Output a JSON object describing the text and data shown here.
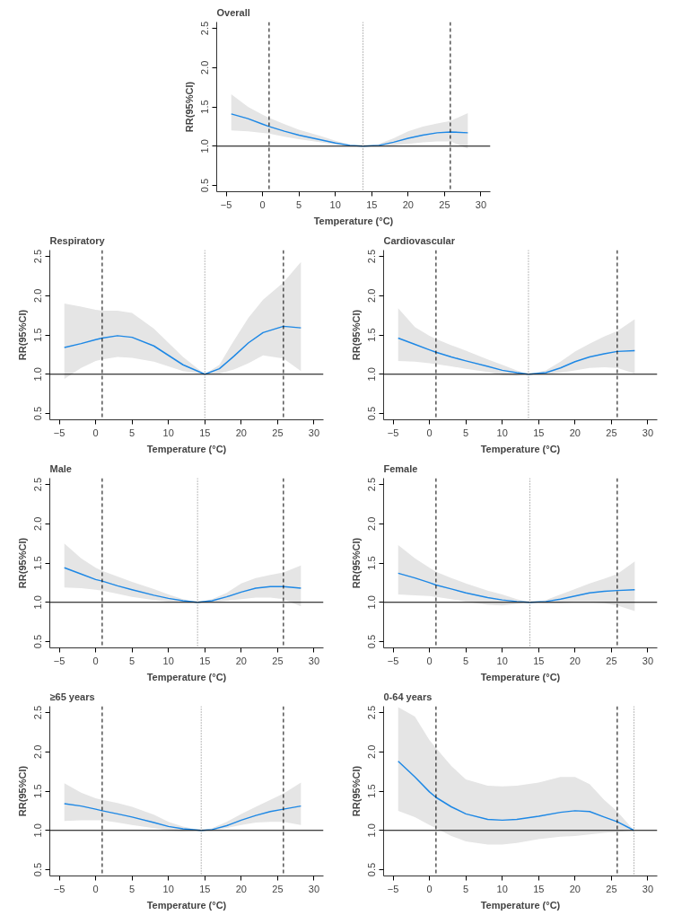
{
  "chart_data": [
    {
      "type": "line",
      "title": "Overall",
      "xlabel": "Temperature (°C)",
      "ylabel": "RR(95%CI)",
      "xlim": [
        -6.3,
        31.3
      ],
      "ylim": [
        0.42,
        2.58
      ],
      "xticks": [
        -5,
        0,
        5,
        10,
        15,
        20,
        25,
        30
      ],
      "yticks": [
        {
          "value": 0.5,
          "label": "0.5"
        },
        {
          "value": 1,
          "label": "1.0"
        },
        {
          "value": 1.5,
          "label": "1.5"
        },
        {
          "value": 2,
          "label": "2.0"
        },
        {
          "value": 2.5,
          "label": "2.5"
        }
      ],
      "x": [
        -4.3,
        -2,
        0,
        0.9,
        3,
        5,
        8,
        10,
        12,
        13.8,
        16,
        18,
        20,
        22,
        24,
        25.8,
        28.2
      ],
      "series": [
        {
          "color": "#1e88e5",
          "line_style": "solid",
          "values": [
            1.41,
            1.35,
            1.28,
            1.25,
            1.19,
            1.14,
            1.08,
            1.04,
            1.01,
            1.0,
            1.01,
            1.05,
            1.1,
            1.14,
            1.17,
            1.18,
            1.17
          ],
          "lower": [
            1.2,
            1.19,
            1.17,
            1.16,
            1.12,
            1.09,
            1.05,
            1.02,
            1.0,
            1.0,
            1.0,
            1.01,
            1.03,
            1.05,
            1.06,
            1.06,
            0.97
          ],
          "upper": [
            1.66,
            1.5,
            1.4,
            1.36,
            1.28,
            1.21,
            1.13,
            1.07,
            1.02,
            1.0,
            1.03,
            1.1,
            1.19,
            1.25,
            1.29,
            1.32,
            1.42
          ]
        }
      ],
      "ref_lines": [
        {
          "axis": "y",
          "value": 1,
          "color": "#000000",
          "line_style": "solid"
        },
        {
          "axis": "x",
          "value": 0.9,
          "color": "#000000",
          "line_style": "dashed"
        },
        {
          "axis": "x",
          "value": 13.8,
          "color": "#777777",
          "line_style": "dotted"
        },
        {
          "axis": "x",
          "value": 25.8,
          "color": "#000000",
          "line_style": "dashed"
        }
      ]
    },
    {
      "type": "line",
      "title": "Respiratory",
      "xlabel": "Temperature (°C)",
      "ylabel": "RR(95%CI)",
      "xlim": [
        -6.3,
        31.3
      ],
      "ylim": [
        0.42,
        2.58
      ],
      "xticks": [
        -5,
        0,
        5,
        10,
        15,
        20,
        25,
        30
      ],
      "yticks": [
        {
          "value": 0.5,
          "label": "0.5"
        },
        {
          "value": 1,
          "label": "1.0"
        },
        {
          "value": 1.5,
          "label": "1.5"
        },
        {
          "value": 2,
          "label": "2.0"
        },
        {
          "value": 2.5,
          "label": "2.5"
        }
      ],
      "x": [
        -4.3,
        -2,
        0,
        0.9,
        3,
        5,
        8,
        10,
        12,
        15,
        17,
        19,
        21,
        23,
        25.8,
        28.2
      ],
      "series": [
        {
          "color": "#1e88e5",
          "line_style": "solid",
          "values": [
            1.34,
            1.39,
            1.44,
            1.46,
            1.49,
            1.47,
            1.36,
            1.24,
            1.12,
            1.0,
            1.07,
            1.23,
            1.4,
            1.53,
            1.61,
            1.59
          ],
          "lower": [
            0.94,
            1.08,
            1.17,
            1.19,
            1.22,
            1.21,
            1.16,
            1.1,
            1.04,
            1.0,
            1.01,
            1.06,
            1.14,
            1.24,
            1.2,
            1.04
          ],
          "upper": [
            1.9,
            1.86,
            1.82,
            1.81,
            1.81,
            1.78,
            1.58,
            1.4,
            1.22,
            1.0,
            1.12,
            1.43,
            1.72,
            1.95,
            2.17,
            2.43
          ]
        }
      ],
      "ref_lines": [
        {
          "axis": "y",
          "value": 1,
          "color": "#000000",
          "line_style": "solid"
        },
        {
          "axis": "x",
          "value": 0.9,
          "color": "#000000",
          "line_style": "dashed"
        },
        {
          "axis": "x",
          "value": 15,
          "color": "#777777",
          "line_style": "dotted"
        },
        {
          "axis": "x",
          "value": 25.8,
          "color": "#000000",
          "line_style": "dashed"
        }
      ]
    },
    {
      "type": "line",
      "title": "Cardiovascular",
      "xlabel": "Temperature (°C)",
      "ylabel": "RR(95%CI)",
      "xlim": [
        -6.3,
        31.3
      ],
      "ylim": [
        0.42,
        2.58
      ],
      "xticks": [
        -5,
        0,
        5,
        10,
        15,
        20,
        25,
        30
      ],
      "yticks": [
        {
          "value": 0.5,
          "label": "0.5"
        },
        {
          "value": 1,
          "label": "1.0"
        },
        {
          "value": 1.5,
          "label": "1.5"
        },
        {
          "value": 2,
          "label": "2.0"
        },
        {
          "value": 2.5,
          "label": "2.5"
        }
      ],
      "x": [
        -4.3,
        -2,
        0,
        0.9,
        3,
        5,
        8,
        10,
        12,
        13.6,
        16,
        18,
        20,
        22,
        24,
        25.8,
        28.2
      ],
      "series": [
        {
          "color": "#1e88e5",
          "line_style": "solid",
          "values": [
            1.46,
            1.38,
            1.31,
            1.28,
            1.22,
            1.17,
            1.1,
            1.05,
            1.02,
            1.0,
            1.02,
            1.08,
            1.16,
            1.22,
            1.26,
            1.29,
            1.3
          ],
          "lower": [
            1.17,
            1.16,
            1.14,
            1.13,
            1.1,
            1.07,
            1.03,
            0.99,
            0.98,
            1.0,
            1.0,
            1.02,
            1.05,
            1.08,
            1.09,
            1.08,
            1.01
          ],
          "upper": [
            1.84,
            1.6,
            1.49,
            1.45,
            1.37,
            1.3,
            1.19,
            1.12,
            1.05,
            1.0,
            1.05,
            1.16,
            1.29,
            1.39,
            1.48,
            1.55,
            1.7
          ]
        }
      ],
      "ref_lines": [
        {
          "axis": "y",
          "value": 1,
          "color": "#000000",
          "line_style": "solid"
        },
        {
          "axis": "x",
          "value": 0.9,
          "color": "#000000",
          "line_style": "dashed"
        },
        {
          "axis": "x",
          "value": 13.6,
          "color": "#777777",
          "line_style": "dotted"
        },
        {
          "axis": "x",
          "value": 25.8,
          "color": "#000000",
          "line_style": "dashed"
        }
      ]
    },
    {
      "type": "line",
      "title": "Male",
      "xlabel": "Temperature (°C)",
      "ylabel": "RR(95%CI)",
      "xlim": [
        -6.3,
        31.3
      ],
      "ylim": [
        0.42,
        2.58
      ],
      "xticks": [
        -5,
        0,
        5,
        10,
        15,
        20,
        25,
        30
      ],
      "yticks": [
        {
          "value": 0.5,
          "label": "0.5"
        },
        {
          "value": 1,
          "label": "1.0"
        },
        {
          "value": 1.5,
          "label": "1.5"
        },
        {
          "value": 2,
          "label": "2.0"
        },
        {
          "value": 2.5,
          "label": "2.5"
        }
      ],
      "x": [
        -4.3,
        -2,
        0,
        0.9,
        3,
        5,
        8,
        10,
        12,
        14,
        16,
        18,
        20,
        22,
        24,
        25.8,
        28.2
      ],
      "series": [
        {
          "color": "#1e88e5",
          "line_style": "solid",
          "values": [
            1.44,
            1.36,
            1.29,
            1.27,
            1.21,
            1.16,
            1.09,
            1.05,
            1.02,
            1.0,
            1.02,
            1.07,
            1.13,
            1.18,
            1.2,
            1.2,
            1.18
          ],
          "lower": [
            1.19,
            1.18,
            1.16,
            1.15,
            1.11,
            1.07,
            1.03,
            1.01,
            1.0,
            1.0,
            1.0,
            1.02,
            1.04,
            1.06,
            1.06,
            1.04,
            0.95
          ],
          "upper": [
            1.75,
            1.56,
            1.44,
            1.4,
            1.33,
            1.26,
            1.17,
            1.1,
            1.04,
            1.0,
            1.04,
            1.12,
            1.24,
            1.31,
            1.35,
            1.38,
            1.47
          ]
        }
      ],
      "ref_lines": [
        {
          "axis": "y",
          "value": 1,
          "color": "#000000",
          "line_style": "solid"
        },
        {
          "axis": "x",
          "value": 0.9,
          "color": "#000000",
          "line_style": "dashed"
        },
        {
          "axis": "x",
          "value": 14,
          "color": "#777777",
          "line_style": "dotted"
        },
        {
          "axis": "x",
          "value": 25.8,
          "color": "#000000",
          "line_style": "dashed"
        }
      ]
    },
    {
      "type": "line",
      "title": "Female",
      "xlabel": "Temperature (°C)",
      "ylabel": "RR(95%CI)",
      "xlim": [
        -6.3,
        31.3
      ],
      "ylim": [
        0.42,
        2.58
      ],
      "xticks": [
        -5,
        0,
        5,
        10,
        15,
        20,
        25,
        30
      ],
      "yticks": [
        {
          "value": 0.5,
          "label": "0.5"
        },
        {
          "value": 1,
          "label": "1.0"
        },
        {
          "value": 1.5,
          "label": "1.5"
        },
        {
          "value": 2,
          "label": "2.0"
        },
        {
          "value": 2.5,
          "label": "2.5"
        }
      ],
      "x": [
        -4.3,
        -2,
        0,
        0.9,
        3,
        5,
        8,
        10,
        12,
        13.8,
        16,
        18,
        20,
        22,
        24,
        25.8,
        28.2
      ],
      "series": [
        {
          "color": "#1e88e5",
          "line_style": "solid",
          "values": [
            1.37,
            1.31,
            1.25,
            1.22,
            1.17,
            1.12,
            1.06,
            1.03,
            1.01,
            1.0,
            1.01,
            1.04,
            1.08,
            1.12,
            1.14,
            1.15,
            1.16
          ],
          "lower": [
            1.1,
            1.09,
            1.08,
            1.07,
            1.04,
            1.01,
            0.97,
            0.96,
            0.98,
            1.0,
            0.99,
            0.99,
            1.0,
            1.0,
            0.99,
            0.96,
            0.89
          ],
          "upper": [
            1.73,
            1.56,
            1.44,
            1.39,
            1.31,
            1.24,
            1.15,
            1.1,
            1.04,
            1.0,
            1.03,
            1.1,
            1.17,
            1.24,
            1.3,
            1.36,
            1.52
          ]
        }
      ],
      "ref_lines": [
        {
          "axis": "y",
          "value": 1,
          "color": "#000000",
          "line_style": "solid"
        },
        {
          "axis": "x",
          "value": 0.9,
          "color": "#000000",
          "line_style": "dashed"
        },
        {
          "axis": "x",
          "value": 13.8,
          "color": "#777777",
          "line_style": "dotted"
        },
        {
          "axis": "x",
          "value": 25.8,
          "color": "#000000",
          "line_style": "dashed"
        }
      ]
    },
    {
      "type": "line",
      "title": "≥65 years",
      "xlabel": "Temperature (°C)",
      "ylabel": "RR(95%CI)",
      "xlim": [
        -6.3,
        31.3
      ],
      "ylim": [
        0.42,
        2.58
      ],
      "xticks": [
        -5,
        0,
        5,
        10,
        15,
        20,
        25,
        30
      ],
      "yticks": [
        {
          "value": 0.5,
          "label": "0.5"
        },
        {
          "value": 1,
          "label": "1.0"
        },
        {
          "value": 1.5,
          "label": "1.5"
        },
        {
          "value": 2,
          "label": "2.0"
        },
        {
          "value": 2.5,
          "label": "2.5"
        }
      ],
      "x": [
        -4.3,
        -2,
        0,
        0.9,
        3,
        5,
        8,
        10,
        12,
        14.5,
        16,
        18,
        20,
        22,
        24,
        25.8,
        28.2
      ],
      "series": [
        {
          "color": "#1e88e5",
          "line_style": "solid",
          "values": [
            1.34,
            1.31,
            1.27,
            1.25,
            1.21,
            1.17,
            1.1,
            1.05,
            1.02,
            1.0,
            1.01,
            1.06,
            1.13,
            1.19,
            1.24,
            1.27,
            1.31
          ],
          "lower": [
            1.12,
            1.13,
            1.13,
            1.13,
            1.1,
            1.07,
            1.03,
            1.0,
            0.99,
            1.0,
            1.0,
            1.03,
            1.07,
            1.1,
            1.11,
            1.11,
            1.07
          ],
          "upper": [
            1.6,
            1.48,
            1.41,
            1.39,
            1.35,
            1.3,
            1.2,
            1.11,
            1.05,
            1.0,
            1.03,
            1.11,
            1.21,
            1.3,
            1.39,
            1.47,
            1.61
          ]
        }
      ],
      "ref_lines": [
        {
          "axis": "y",
          "value": 1,
          "color": "#000000",
          "line_style": "solid"
        },
        {
          "axis": "x",
          "value": 0.9,
          "color": "#000000",
          "line_style": "dashed"
        },
        {
          "axis": "x",
          "value": 14.5,
          "color": "#777777",
          "line_style": "dotted"
        },
        {
          "axis": "x",
          "value": 25.8,
          "color": "#000000",
          "line_style": "dashed"
        }
      ]
    },
    {
      "type": "line",
      "title": "0-64 years",
      "xlabel": "Temperature (°C)",
      "ylabel": "RR(95%CI)",
      "xlim": [
        -6.3,
        31.3
      ],
      "ylim": [
        0.42,
        2.58
      ],
      "xticks": [
        -5,
        0,
        5,
        10,
        15,
        20,
        25,
        30
      ],
      "yticks": [
        {
          "value": 0.5,
          "label": "0.5"
        },
        {
          "value": 1,
          "label": "1.0"
        },
        {
          "value": 1.5,
          "label": "1.5"
        },
        {
          "value": 2,
          "label": "2.0"
        },
        {
          "value": 2.5,
          "label": "2.5"
        }
      ],
      "x": [
        -4.3,
        -2,
        0,
        0.9,
        3,
        5,
        8,
        10,
        12,
        15,
        18,
        20,
        22,
        24,
        25.8,
        28.1
      ],
      "series": [
        {
          "color": "#1e88e5",
          "line_style": "solid",
          "values": [
            1.88,
            1.68,
            1.49,
            1.42,
            1.3,
            1.21,
            1.14,
            1.13,
            1.14,
            1.18,
            1.23,
            1.25,
            1.24,
            1.17,
            1.11,
            1.0
          ],
          "lower": [
            1.25,
            1.17,
            1.07,
            1.03,
            0.93,
            0.86,
            0.82,
            0.82,
            0.84,
            0.89,
            0.92,
            0.93,
            0.95,
            0.97,
            0.98,
            1.0
          ],
          "upper": [
            2.57,
            2.45,
            2.15,
            2.05,
            1.82,
            1.65,
            1.57,
            1.56,
            1.57,
            1.61,
            1.68,
            1.68,
            1.59,
            1.39,
            1.24,
            1.0
          ]
        }
      ],
      "ref_lines": [
        {
          "axis": "y",
          "value": 1,
          "color": "#000000",
          "line_style": "solid"
        },
        {
          "axis": "x",
          "value": 0.9,
          "color": "#000000",
          "line_style": "dashed"
        },
        {
          "axis": "x",
          "value": 25.8,
          "color": "#000000",
          "line_style": "dashed"
        },
        {
          "axis": "x",
          "value": 28.1,
          "color": "#777777",
          "line_style": "dotted"
        }
      ]
    }
  ]
}
